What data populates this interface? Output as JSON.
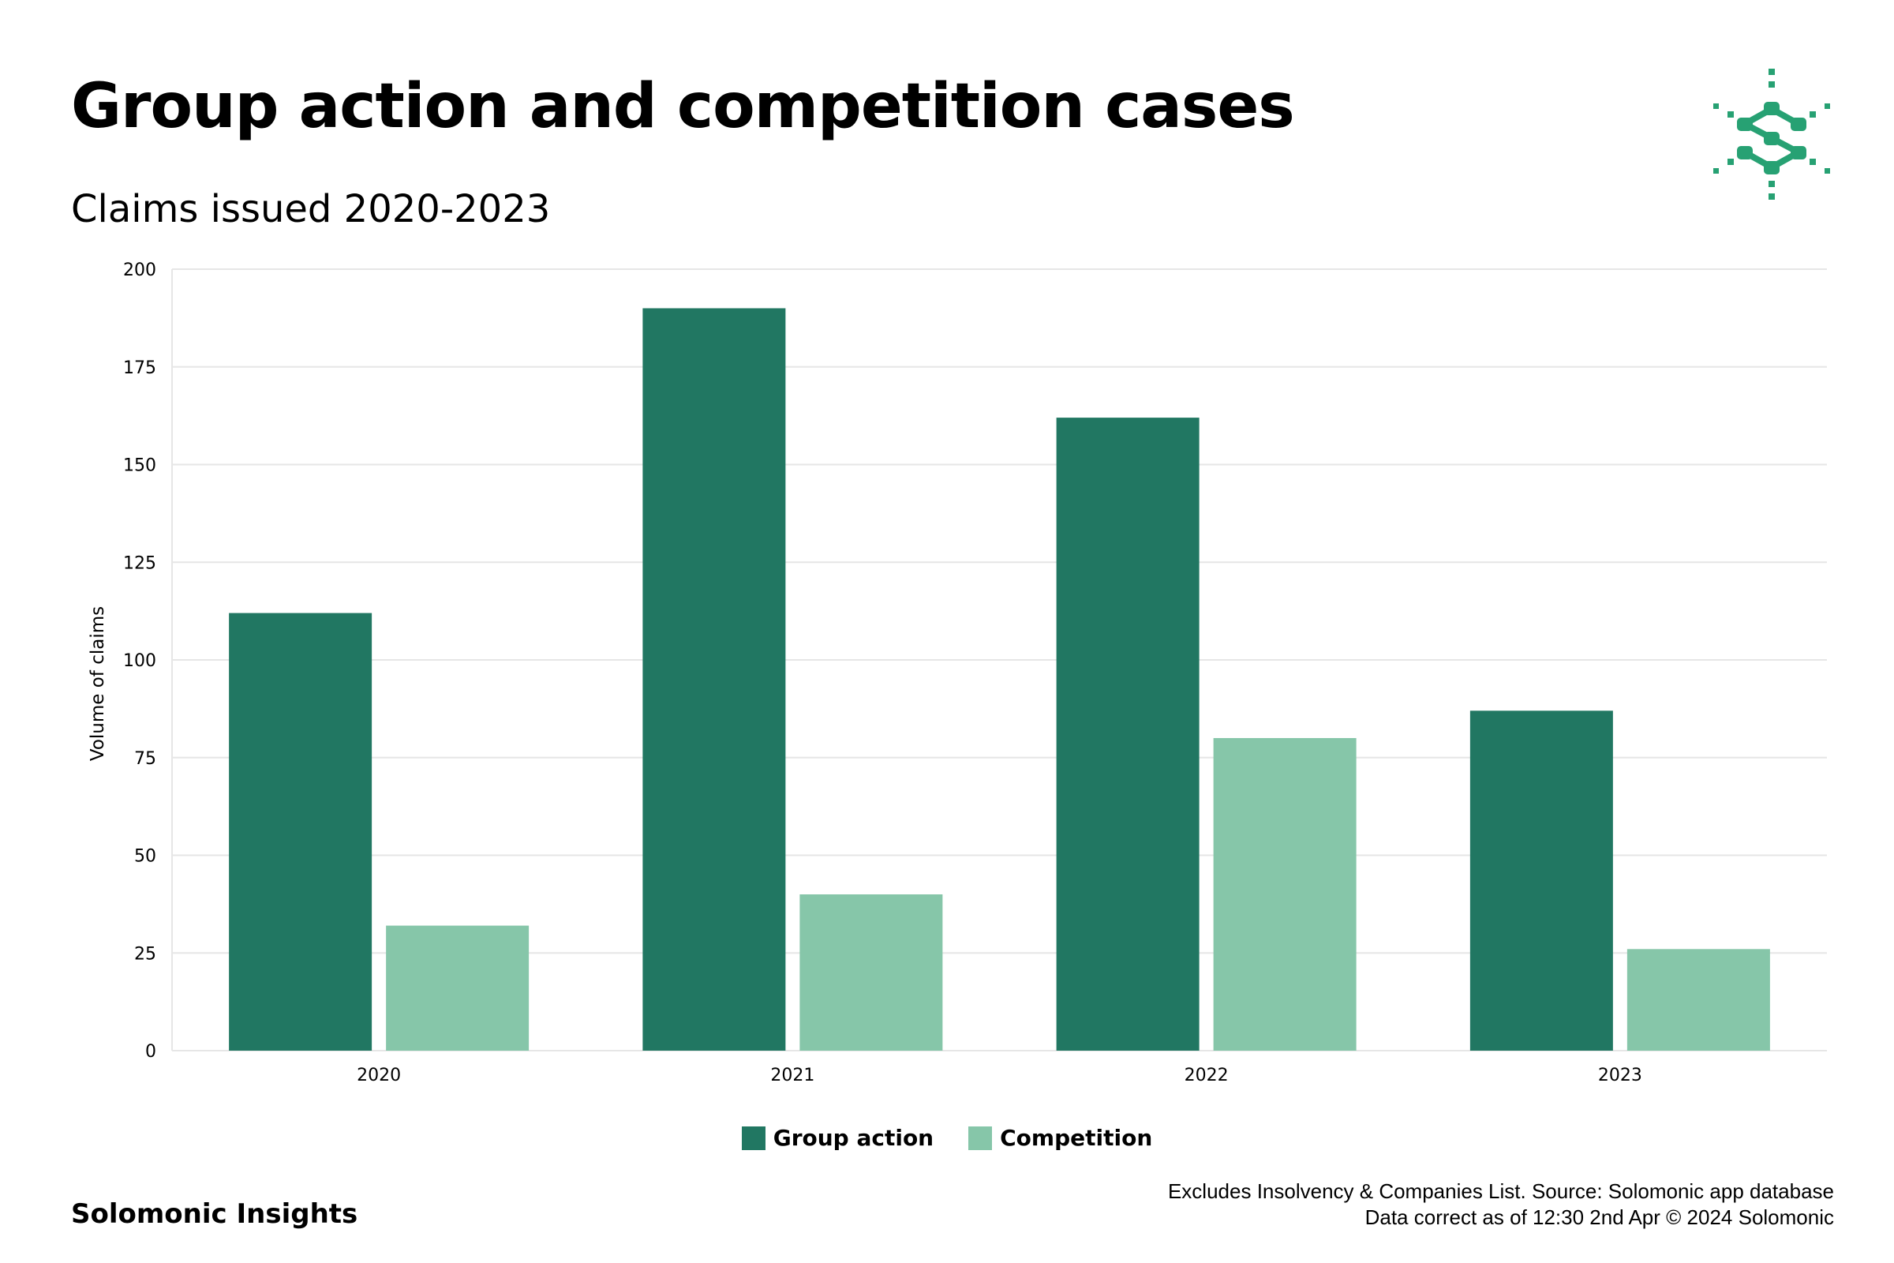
{
  "header": {
    "title": "Group action and competition cases",
    "subtitle": "Claims issued 2020-2023"
  },
  "footer": {
    "brand": "Solomonic Insights",
    "note_line1": "Excludes Insolvency & Companies List. Source: Solomonic app database",
    "note_line2": "Data correct as of 12:30 2nd Apr © 2024 Solomonic"
  },
  "icons": {
    "logo": "solomonic-logo-icon"
  },
  "colors": {
    "group_action": "#217762",
    "competition": "#86c6a9",
    "logo": "#27a173",
    "grid": "#e6e6e6",
    "text": "#000000"
  },
  "chart_data": {
    "type": "bar",
    "categories": [
      "2020",
      "2021",
      "2022",
      "2023"
    ],
    "series": [
      {
        "name": "Group action",
        "values": [
          112,
          190,
          162,
          87
        ]
      },
      {
        "name": "Competition",
        "values": [
          32,
          40,
          80,
          26
        ]
      }
    ],
    "title": "Group action and competition cases",
    "subtitle": "Claims issued 2020-2023",
    "xlabel": "",
    "ylabel": "Volume of claims",
    "ylim": [
      0,
      200
    ],
    "yticks": [
      0,
      25,
      50,
      75,
      100,
      125,
      150,
      175,
      200
    ],
    "grid": true,
    "legend_position": "bottom"
  }
}
